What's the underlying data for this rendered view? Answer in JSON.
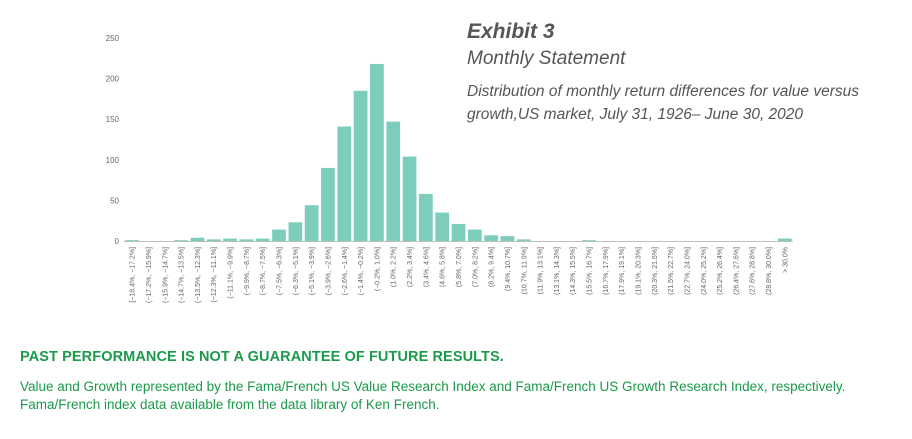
{
  "heading": {
    "exhibit": "Exhibit 3",
    "subtitle": "Monthly Statement",
    "description": "Distribution of monthly return differences for value versus growth,US market, July 31, 1926– June 30, 2020"
  },
  "disclaimer": "PAST PERFORMANCE IS NOT A GUARANTEE OF FUTURE RESULTS.",
  "footnote": {
    "line1": "Value and Growth represented by the Fama/French US Value Research Index and Fama/French US Growth Research Index, respectively.",
    "line2": "Fama/French index data available from the data library of Ken French."
  },
  "colors": {
    "bar": "#7ccdbb",
    "axis_text": "#666666",
    "accent_green": "#1a9a4a"
  },
  "chart_data": {
    "type": "bar",
    "ylim": [
      0,
      250
    ],
    "yticks": [
      0,
      50,
      100,
      150,
      200,
      250
    ],
    "grid": false,
    "categories": [
      "[−18.4%, −17.2%]",
      "(−17.2%, −15.9%]",
      "(−15.9%, −14.7%]",
      "(−14.7%, −13.5%]",
      "(−13.5%, −12.3%]",
      "(−12.3%, −11.1%]",
      "(−11.1%, −9.9%]",
      "(−9.9%, −8.7%]",
      "(−8.7%, −7.5%]",
      "(−7.5%, −6.3%]",
      "(−6.3%, −5.1%]",
      "(−5.1%, −3.9%]",
      "(−3.9%, −2.6%]",
      "(−2.6%, −1.4%]",
      "(−1.4%, −0.2%]",
      "(−0.2%, 1.0%]",
      "(1.0%, 2.2%]",
      "(2.2%, 3.4%]",
      "(3.4%, 4.6%]",
      "(4.6%, 5.8%]",
      "(5.8%, 7.0%]",
      "(7.0%, 8.2%]",
      "(8.2%, 9.4%]",
      "(9.4%, 10.7%]",
      "(10.7%, 11.9%]",
      "(11.9%, 13.1%]",
      "(13.1%, 14.3%]",
      "(14.3%, 15.5%]",
      "(15.5%, 16.7%]",
      "(16.7%, 17.9%]",
      "(17.9%, 19.1%]",
      "(19.1%, 20.3%]",
      "(20.3%, 21.5%]",
      "(21.5%, 22.7%]",
      "(22.7%, 24.0%]",
      "(24.0%, 25.2%]",
      "(25.2%, 26.4%]",
      "(26.4%, 27.6%]",
      "(27.6%, 28.8%]",
      "(28.8%, 30.0%]",
      "> 30.0%"
    ],
    "values": [
      1,
      0,
      0,
      1,
      4,
      2,
      3,
      2,
      3,
      14,
      23,
      44,
      90,
      141,
      185,
      218,
      147,
      104,
      58,
      35,
      21,
      14,
      7,
      6,
      2,
      0,
      0,
      0,
      1,
      0,
      0,
      0,
      0,
      0,
      0,
      0,
      0,
      0,
      0,
      0,
      3
    ]
  }
}
